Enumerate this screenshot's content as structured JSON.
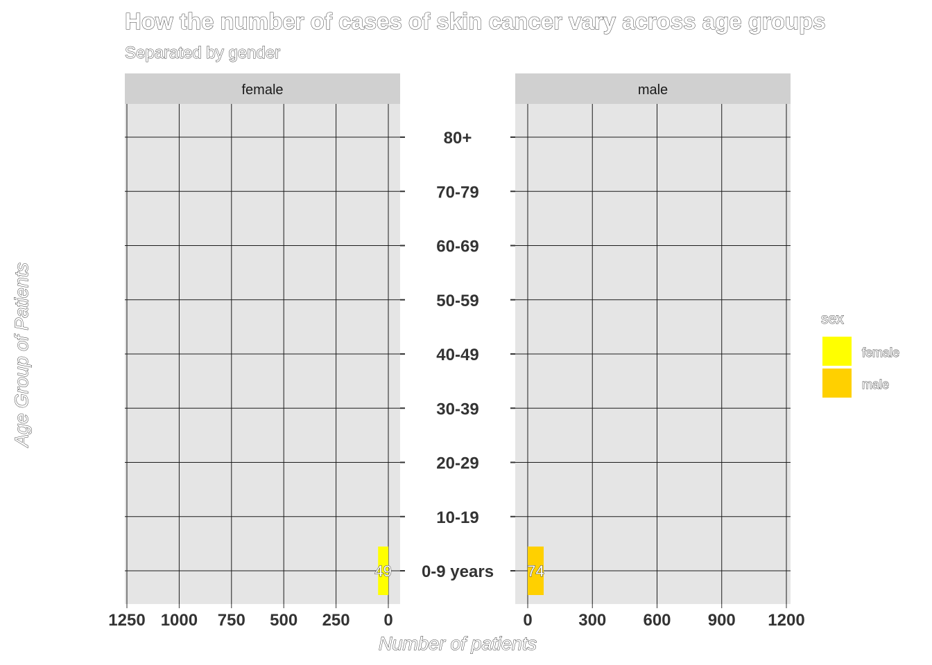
{
  "chart_data": {
    "type": "bar",
    "orientation": "horizontal",
    "layout": "back-to-back",
    "title": "How the number of cases of skin cancer vary across age groups",
    "subtitle": "Separated by gender",
    "xlabel": "Number of patients",
    "ylabel": "Age Group of Patients",
    "categories": [
      "0-9 years",
      "10-19",
      "20-29",
      "30-39",
      "40-49",
      "50-59",
      "60-69",
      "70-79",
      "80+"
    ],
    "panels": [
      {
        "name": "female",
        "color": "#FFFF00",
        "reversed": true,
        "xlim": [
          0,
          1250
        ],
        "ticks": [
          1250,
          1000,
          750,
          500,
          250,
          0
        ],
        "values": [
          49,
          null,
          null,
          null,
          null,
          null,
          null,
          null,
          null
        ]
      },
      {
        "name": "male",
        "color": "#FFD000",
        "reversed": false,
        "xlim": [
          0,
          1200
        ],
        "ticks": [
          0,
          300,
          600,
          900,
          1200
        ],
        "values": [
          74,
          null,
          null,
          null,
          null,
          null,
          null,
          null,
          null
        ]
      }
    ],
    "legend": {
      "title": "sex",
      "position": "right",
      "entries": [
        {
          "label": "female",
          "color": "#FFFF00"
        },
        {
          "label": "male",
          "color": "#FFD000"
        }
      ]
    },
    "grid": true,
    "panel_background": "#E5E5E5",
    "strip_background": "#D0D0D0",
    "gridline_color": "#1a1a1a"
  }
}
